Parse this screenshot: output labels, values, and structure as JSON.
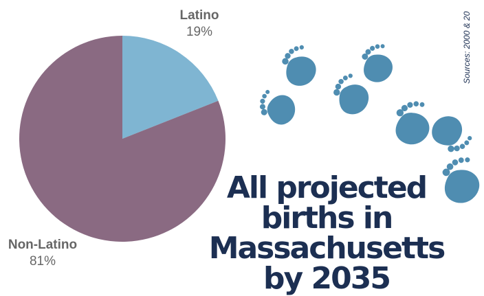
{
  "chart_data": {
    "type": "pie",
    "categories": [
      "Latino",
      "Non-Latino"
    ],
    "values": [
      19,
      81
    ],
    "value_labels": [
      "19%",
      "81%"
    ],
    "colors": [
      "#7fb5d2",
      "#8a6a82"
    ],
    "start_angle_deg": 0,
    "direction": "clockwise",
    "legend": "none"
  },
  "headline": {
    "line1": "All projected",
    "line2": "births in",
    "line3": "Massachusetts",
    "line4": "by 2035"
  },
  "sources_text": "Sources: 2000 & 20",
  "decor": {
    "footprint_color": "#4f8db1",
    "footprint_icon": "baby-footprint-icon"
  }
}
